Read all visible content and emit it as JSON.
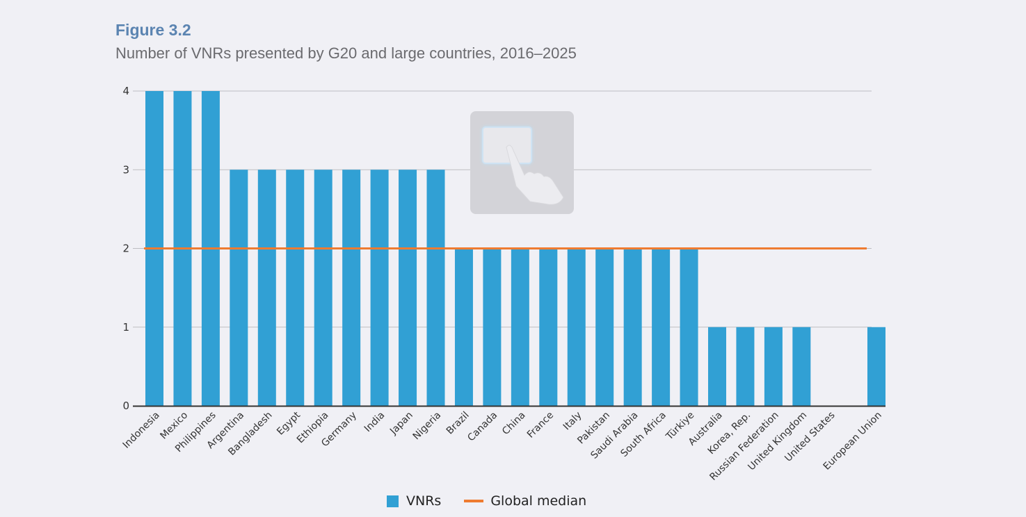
{
  "figure_label": "Figure 3.2",
  "figure_title": "Number of VNRs presented by G20 and large countries, 2016–2025",
  "overlay": {
    "icon": "touch-tap-icon"
  },
  "legend": {
    "vnrs": "VNRs",
    "median": "Global median"
  },
  "colors": {
    "bar": "#31a0d4",
    "median": "#ee7b30",
    "grid": "#bdbdc2",
    "axis": "#333333"
  },
  "chart_data": {
    "type": "bar",
    "title": "Number of VNRs presented by G20 and large countries, 2016–2025",
    "xlabel": "",
    "ylabel": "",
    "ylim": [
      0,
      4
    ],
    "yticks": [
      0,
      1,
      2,
      3,
      4
    ],
    "grid": true,
    "legend_position": "bottom-center",
    "categories": [
      "Indonesia",
      "Mexico",
      "Philippines",
      "Argentina",
      "Bangladesh",
      "Egypt",
      "Ethiopia",
      "Germany",
      "India",
      "Japan",
      "Nigeria",
      "Brazil",
      "Canada",
      "China",
      "France",
      "Italy",
      "Pakistan",
      "Saudi Arabia",
      "South Africa",
      "Türkiye",
      "Australia",
      "Korea, Rep.",
      "Russian Federation",
      "United Kingdom",
      "United States",
      "European Union"
    ],
    "series": [
      {
        "name": "VNRs",
        "values": [
          4,
          4,
          4,
          3,
          3,
          3,
          3,
          3,
          3,
          3,
          3,
          2,
          2,
          2,
          2,
          2,
          2,
          2,
          2,
          2,
          1,
          1,
          1,
          1,
          0,
          1
        ]
      },
      {
        "name": "Global median",
        "type": "line",
        "value": 2
      }
    ]
  }
}
